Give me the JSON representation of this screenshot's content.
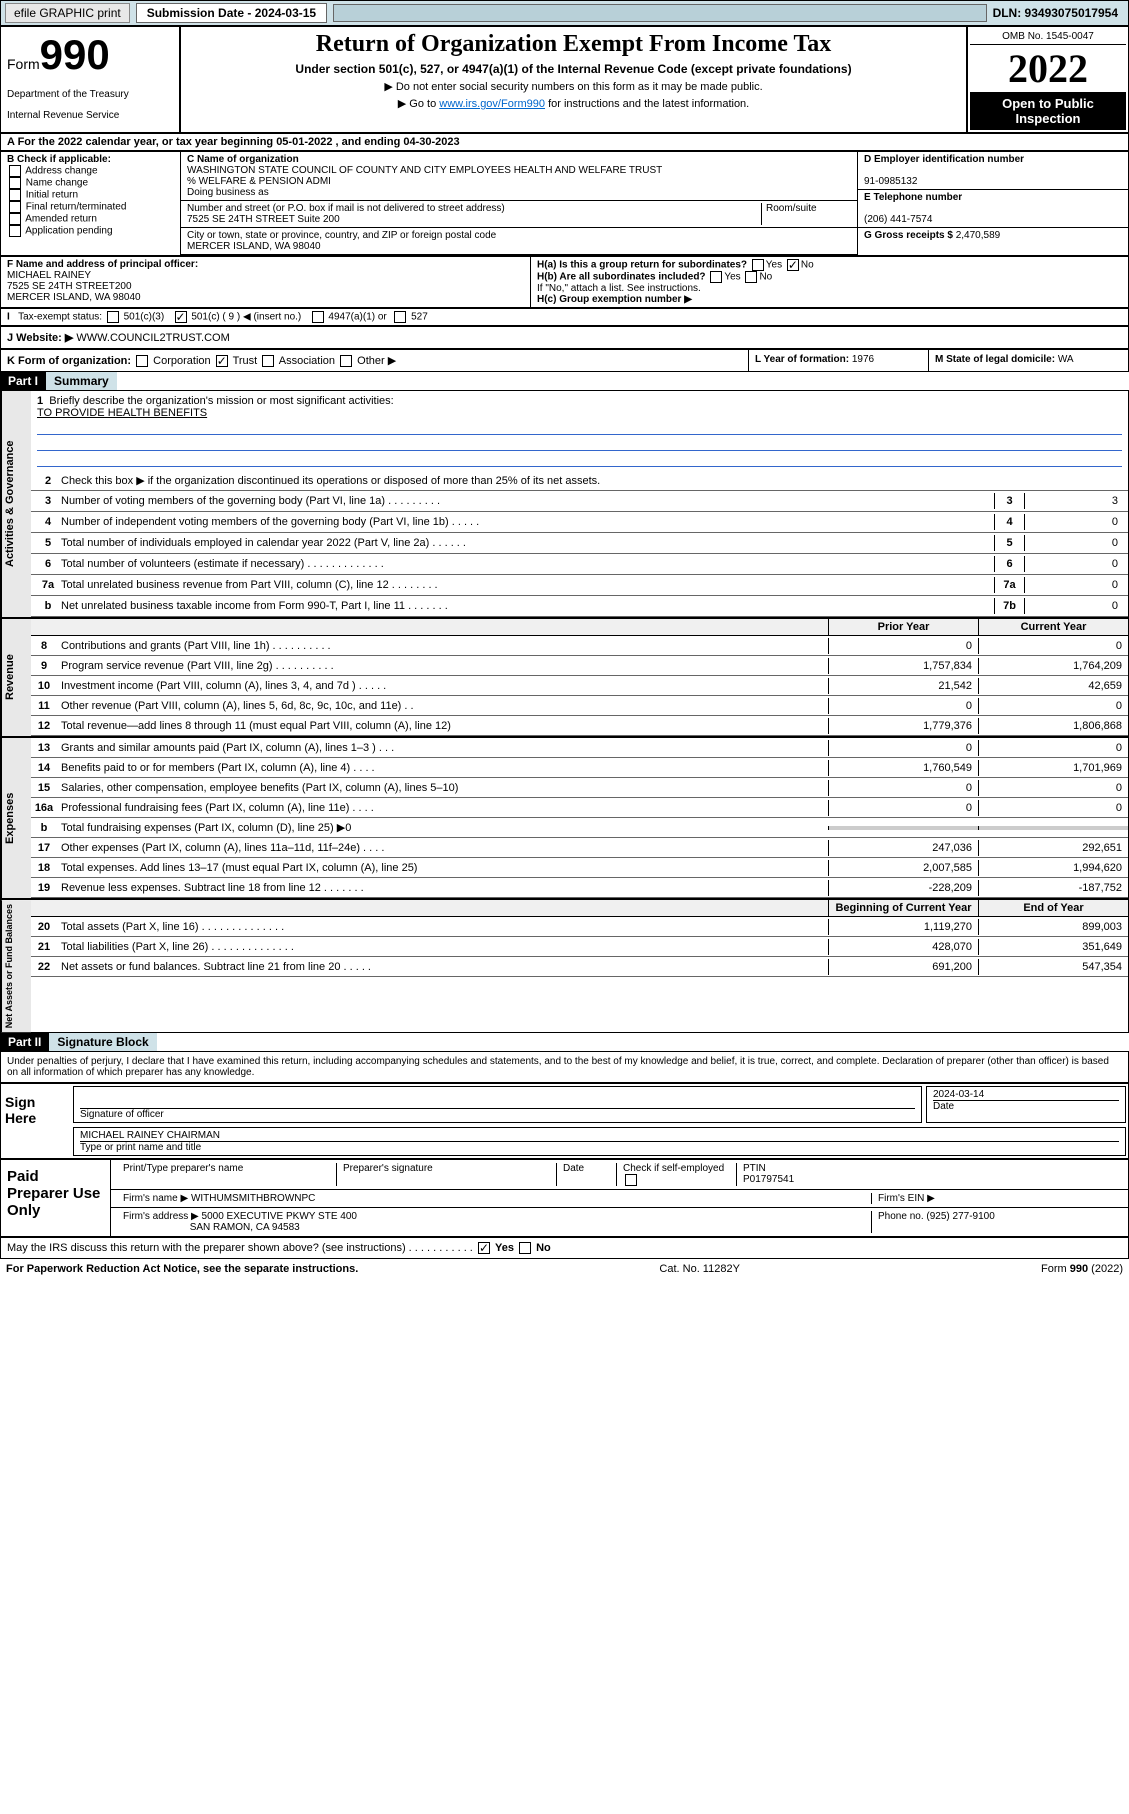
{
  "topbar": {
    "efile": "efile GRAPHIC print",
    "sub_label": "Submission Date - 2024-03-15",
    "dln": "DLN: 93493075017954"
  },
  "header": {
    "form": "Form",
    "num": "990",
    "dept": "Department of the Treasury",
    "irs": "Internal Revenue Service",
    "title": "Return of Organization Exempt From Income Tax",
    "sub1": "Under section 501(c), 527, or 4947(a)(1) of the Internal Revenue Code (except private foundations)",
    "sub2a": "▶ Do not enter social security numbers on this form as it may be made public.",
    "sub2b_pre": "▶ Go to ",
    "sub2b_link": "www.irs.gov/Form990",
    "sub2b_post": " for instructions and the latest information.",
    "omb": "OMB No. 1545-0047",
    "year": "2022",
    "open": "Open to Public Inspection"
  },
  "row_a": "A For the 2022 calendar year, or tax year beginning 05-01-2022   , and ending 04-30-2023",
  "section_b": {
    "hdr": "B Check if applicable:",
    "opts": [
      "Address change",
      "Name change",
      "Initial return",
      "Final return/terminated",
      "Amended return",
      "Application pending"
    ]
  },
  "section_c": {
    "name_lbl": "C Name of organization",
    "name": "WASHINGTON STATE COUNCIL OF COUNTY AND CITY EMPLOYEES HEALTH AND WELFARE TRUST",
    "care": "% WELFARE & PENSION ADMI",
    "dba_lbl": "Doing business as",
    "addr_lbl": "Number and street (or P.O. box if mail is not delivered to street address)",
    "addr": "7525 SE 24TH STREET Suite 200",
    "room_lbl": "Room/suite",
    "city_lbl": "City or town, state or province, country, and ZIP or foreign postal code",
    "city": "MERCER ISLAND, WA  98040"
  },
  "section_d": {
    "lbl": "D Employer identification number",
    "ein": "91-0985132"
  },
  "section_e": {
    "lbl": "E Telephone number",
    "phone": "(206) 441-7574"
  },
  "section_g": {
    "lbl": "G Gross receipts $",
    "amt": "2,470,589"
  },
  "section_f": {
    "lbl": "F  Name and address of principal officer:",
    "name": "MICHAEL RAINEY",
    "addr": "7525 SE 24TH STREET200",
    "city": "MERCER ISLAND, WA  98040"
  },
  "section_h": {
    "ha": "H(a)  Is this a group return for subordinates?",
    "hb": "H(b)  Are all subordinates included?",
    "hb_note": "If \"No,\" attach a list. See instructions.",
    "hc": "H(c)  Group exemption number ▶",
    "yes": "Yes",
    "no": "No"
  },
  "tax_status": {
    "lbl": "Tax-exempt status:",
    "o1": "501(c)(3)",
    "o2": "501(c) ( 9 ) ◀ (insert no.)",
    "o3": "4947(a)(1) or",
    "o4": "527"
  },
  "section_j": {
    "lbl": "J   Website: ▶",
    "url": "WWW.COUNCIL2TRUST.COM"
  },
  "section_k": {
    "lbl": "K Form of organization:",
    "o1": "Corporation",
    "o2": "Trust",
    "o3": "Association",
    "o4": "Other ▶"
  },
  "section_l": {
    "lbl": "L Year of formation:",
    "val": "1976"
  },
  "section_m": {
    "lbl": "M State of legal domicile:",
    "val": "WA"
  },
  "part1": {
    "num": "Part I",
    "title": "Summary"
  },
  "gov": {
    "tab": "Activities & Governance",
    "l1": "Briefly describe the organization's mission or most significant activities:",
    "l1v": "TO PROVIDE HEALTH BENEFITS",
    "l2": "Check this box ▶          if the organization discontinued its operations or disposed of more than 25% of its net assets.",
    "rows": [
      {
        "n": "3",
        "t": "Number of voting members of the governing body (Part VI, line 1a)   .    .    .    .    .    .    .    .    .",
        "b": "3",
        "v": "3"
      },
      {
        "n": "4",
        "t": "Number of independent voting members of the governing body (Part VI, line 1b)  .    .    .    .    .",
        "b": "4",
        "v": "0"
      },
      {
        "n": "5",
        "t": "Total number of individuals employed in calendar year 2022 (Part V, line 2a)    .    .    .    .    .    .",
        "b": "5",
        "v": "0"
      },
      {
        "n": "6",
        "t": "Total number of volunteers (estimate if necessary)   .    .    .    .    .    .    .    .    .    .    .    .    .",
        "b": "6",
        "v": "0"
      },
      {
        "n": "7a",
        "t": "Total unrelated business revenue from Part VIII, column (C), line 12   .    .    .    .    .    .    .    .",
        "b": "7a",
        "v": "0"
      },
      {
        "n": "b",
        "t": "Net unrelated business taxable income from Form 990-T, Part I, line 11    .    .    .    .    .    .    .",
        "b": "7b",
        "v": "0"
      }
    ]
  },
  "revhdr": {
    "prior": "Prior Year",
    "curr": "Current Year"
  },
  "rev": {
    "tab": "Revenue",
    "rows": [
      {
        "n": "8",
        "t": "Contributions and grants (Part VIII, line 1h)   .    .    .    .    .    .    .    .    .    .",
        "p": "0",
        "c": "0"
      },
      {
        "n": "9",
        "t": "Program service revenue (Part VIII, line 2g)   .    .    .    .    .    .    .    .    .    .",
        "p": "1,757,834",
        "c": "1,764,209"
      },
      {
        "n": "10",
        "t": "Investment income (Part VIII, column (A), lines 3, 4, and 7d )   .    .    .    .    .",
        "p": "21,542",
        "c": "42,659"
      },
      {
        "n": "11",
        "t": "Other revenue (Part VIII, column (A), lines 5, 6d, 8c, 9c, 10c, and 11e)    .    .",
        "p": "0",
        "c": "0"
      },
      {
        "n": "12",
        "t": "Total revenue—add lines 8 through 11 (must equal Part VIII, column (A), line 12)",
        "p": "1,779,376",
        "c": "1,806,868"
      }
    ]
  },
  "exp": {
    "tab": "Expenses",
    "rows": [
      {
        "n": "13",
        "t": "Grants and similar amounts paid (Part IX, column (A), lines 1–3 )   .    .    .",
        "p": "0",
        "c": "0"
      },
      {
        "n": "14",
        "t": "Benefits paid to or for members (Part IX, column (A), line 4)    .    .    .    .",
        "p": "1,760,549",
        "c": "1,701,969"
      },
      {
        "n": "15",
        "t": "Salaries, other compensation, employee benefits (Part IX, column (A), lines 5–10)",
        "p": "0",
        "c": "0"
      },
      {
        "n": "16a",
        "t": "Professional fundraising fees (Part IX, column (A), line 11e)   .    .    .    .",
        "p": "0",
        "c": "0"
      },
      {
        "n": "b",
        "t": "Total fundraising expenses (Part IX, column (D), line 25) ▶0",
        "p": "",
        "c": "",
        "grey": true
      },
      {
        "n": "17",
        "t": "Other expenses (Part IX, column (A), lines 11a–11d, 11f–24e)   .    .    .    .",
        "p": "247,036",
        "c": "292,651"
      },
      {
        "n": "18",
        "t": "Total expenses. Add lines 13–17 (must equal Part IX, column (A), line 25)",
        "p": "2,007,585",
        "c": "1,994,620"
      },
      {
        "n": "19",
        "t": "Revenue less expenses. Subtract line 18 from line 12    .    .    .    .    .    .    .",
        "p": "-228,209",
        "c": "-187,752"
      }
    ]
  },
  "nethdr": {
    "prior": "Beginning of Current Year",
    "curr": "End of Year"
  },
  "net": {
    "tab": "Net Assets or Fund Balances",
    "rows": [
      {
        "n": "20",
        "t": "Total assets (Part X, line 16)   .    .    .    .    .    .    .    .    .    .    .    .    .    .",
        "p": "1,119,270",
        "c": "899,003"
      },
      {
        "n": "21",
        "t": "Total liabilities (Part X, line 26)  .    .    .    .    .    .    .    .    .    .    .    .    .    .",
        "p": "428,070",
        "c": "351,649"
      },
      {
        "n": "22",
        "t": "Net assets or fund balances. Subtract line 21 from line 20    .    .    .    .    .",
        "p": "691,200",
        "c": "547,354"
      }
    ]
  },
  "part2": {
    "num": "Part II",
    "title": "Signature Block"
  },
  "penalty": "Under penalties of perjury, I declare that I have examined this return, including accompanying schedules and statements, and to the best of my knowledge and belief, it is true, correct, and complete. Declaration of preparer (other than officer) is based on all information of which preparer has any knowledge.",
  "sign": {
    "lbl": "Sign Here",
    "sig_lbl": "Signature of officer",
    "date_lbl": "Date",
    "date": "2024-03-14",
    "name": "MICHAEL RAINEY CHAIRMAN",
    "name_lbl": "Type or print name and title"
  },
  "paid": {
    "lbl": "Paid Preparer Use Only",
    "h1": "Print/Type preparer's name",
    "h2": "Preparer's signature",
    "h3": "Date",
    "h4": "Check         if self-employed",
    "h5": "PTIN",
    "ptin": "P01797541",
    "firm_lbl": "Firm's name    ▶",
    "firm": "WITHUMSMITHBROWNPC",
    "ein_lbl": "Firm's EIN ▶",
    "addr_lbl": "Firm's address ▶",
    "addr": "5000 EXECUTIVE PKWY STE 400",
    "city": "SAN RAMON, CA  94583",
    "phone_lbl": "Phone no.",
    "phone": "(925) 277-9100"
  },
  "discuss": "May the IRS discuss this return with the preparer shown above? (see instructions)    .    .    .    .    .    .    .    .    .    .    .",
  "footer": {
    "l": "For Paperwork Reduction Act Notice, see the separate instructions.",
    "m": "Cat. No. 11282Y",
    "r": "Form 990 (2022)"
  }
}
